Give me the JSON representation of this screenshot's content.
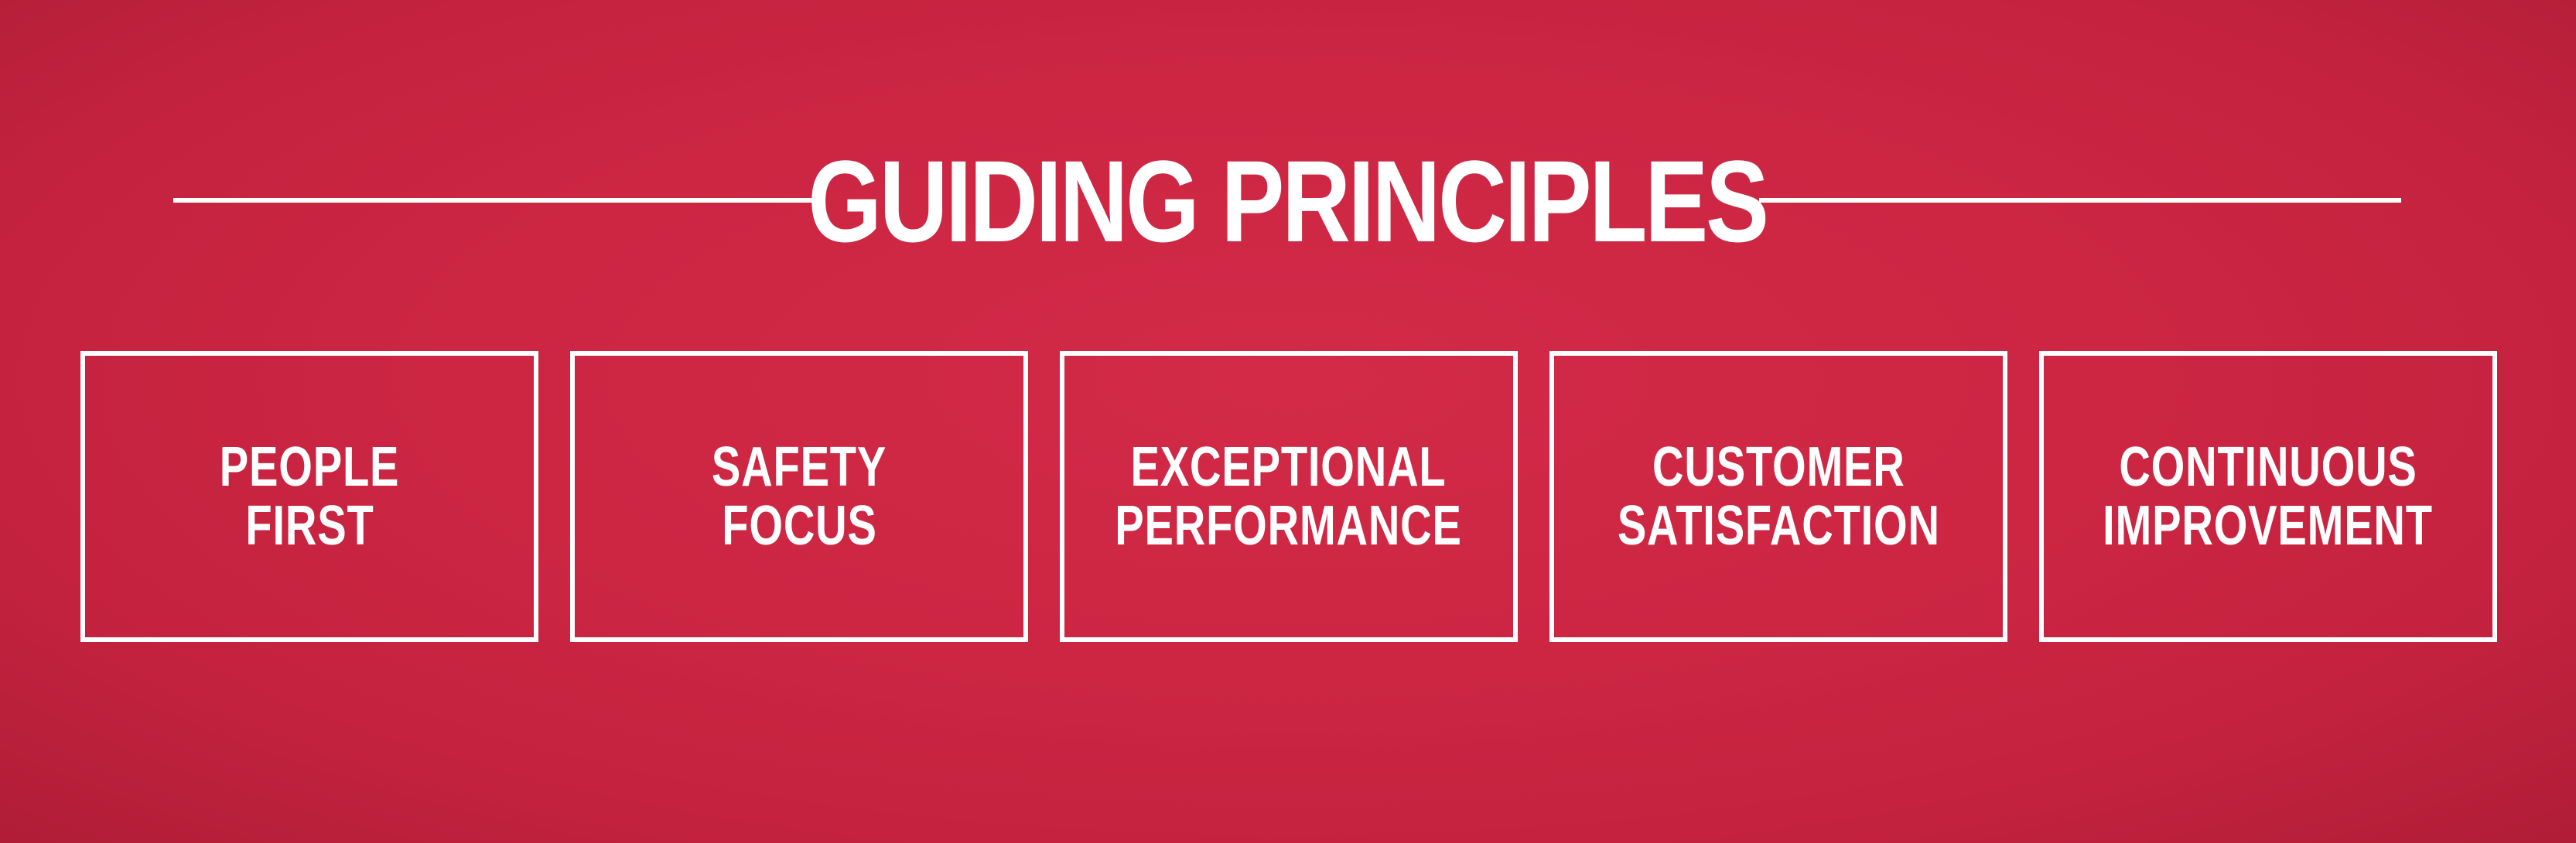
{
  "heading": {
    "title": "GUIDING PRINCIPLES"
  },
  "principles": [
    {
      "line1": "PEOPLE",
      "line2": "FIRST"
    },
    {
      "line1": "SAFETY",
      "line2": "FOCUS"
    },
    {
      "line1": "EXCEPTIONAL",
      "line2": "PERFORMANCE"
    },
    {
      "line1": "CUSTOMER",
      "line2": "SATISFACTION"
    },
    {
      "line1": "CONTINUOUS",
      "line2": "IMPROVEMENT"
    }
  ],
  "colors": {
    "background": "#cc2643",
    "foreground": "#ffffff"
  }
}
